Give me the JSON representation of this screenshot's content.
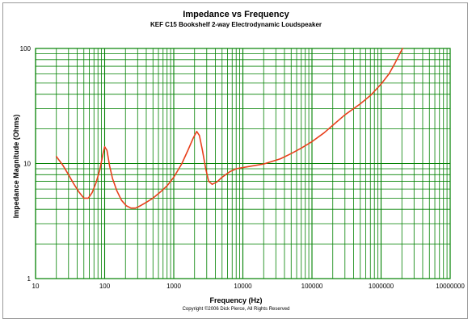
{
  "chart_data": {
    "type": "line",
    "title": "Impedance vs Frequency",
    "subtitle": "KEF C15 Bookshelf 2-way Electrodynamic Loudspeaker",
    "xlabel": "Frequency (Hz)",
    "ylabel": "Impedance Magnitude (Ohms)",
    "x_scale": "log",
    "y_scale": "log",
    "xlim": [
      10,
      10000000
    ],
    "ylim": [
      1,
      100
    ],
    "x_tick_labels": [
      "10",
      "100",
      "1000",
      "10000",
      "100000",
      "1000000",
      "10000000"
    ],
    "y_tick_labels": [
      "1",
      "10",
      "100"
    ],
    "grid": true,
    "grid_color": "#008000",
    "series": [
      {
        "color": "#e8401c",
        "points": [
          [
            20,
            11.5
          ],
          [
            25,
            9.6
          ],
          [
            30,
            8.0
          ],
          [
            36,
            6.6
          ],
          [
            43,
            5.6
          ],
          [
            50,
            5.0
          ],
          [
            58,
            5.0
          ],
          [
            66,
            5.6
          ],
          [
            75,
            6.8
          ],
          [
            85,
            8.8
          ],
          [
            95,
            12.3
          ],
          [
            100,
            14.0
          ],
          [
            108,
            13.0
          ],
          [
            118,
            9.5
          ],
          [
            130,
            7.4
          ],
          [
            150,
            5.8
          ],
          [
            175,
            4.8
          ],
          [
            205,
            4.3
          ],
          [
            240,
            4.1
          ],
          [
            280,
            4.1
          ],
          [
            330,
            4.3
          ],
          [
            400,
            4.6
          ],
          [
            500,
            5.0
          ],
          [
            650,
            5.7
          ],
          [
            800,
            6.4
          ],
          [
            1000,
            7.6
          ],
          [
            1300,
            9.9
          ],
          [
            1600,
            13.0
          ],
          [
            1900,
            16.5
          ],
          [
            2150,
            19.0
          ],
          [
            2350,
            17.5
          ],
          [
            2600,
            13.0
          ],
          [
            2900,
            9.0
          ],
          [
            3200,
            7.0
          ],
          [
            3600,
            6.6
          ],
          [
            4200,
            6.9
          ],
          [
            5000,
            7.6
          ],
          [
            6500,
            8.5
          ],
          [
            8000,
            9.0
          ],
          [
            12000,
            9.4
          ],
          [
            20000,
            9.9
          ],
          [
            35000,
            11.0
          ],
          [
            50000,
            12.2
          ],
          [
            70000,
            13.6
          ],
          [
            100000,
            15.5
          ],
          [
            150000,
            18.5
          ],
          [
            200000,
            21.5
          ],
          [
            300000,
            26.5
          ],
          [
            500000,
            33.0
          ],
          [
            700000,
            39.0
          ],
          [
            1000000,
            49.0
          ],
          [
            1300000,
            60.0
          ],
          [
            1600000,
            75.0
          ],
          [
            1900000,
            92.0
          ],
          [
            2050000,
            100.0
          ]
        ]
      }
    ]
  },
  "footer": "Copyright ©2006 Dick Pierce, All Rights Reserved"
}
